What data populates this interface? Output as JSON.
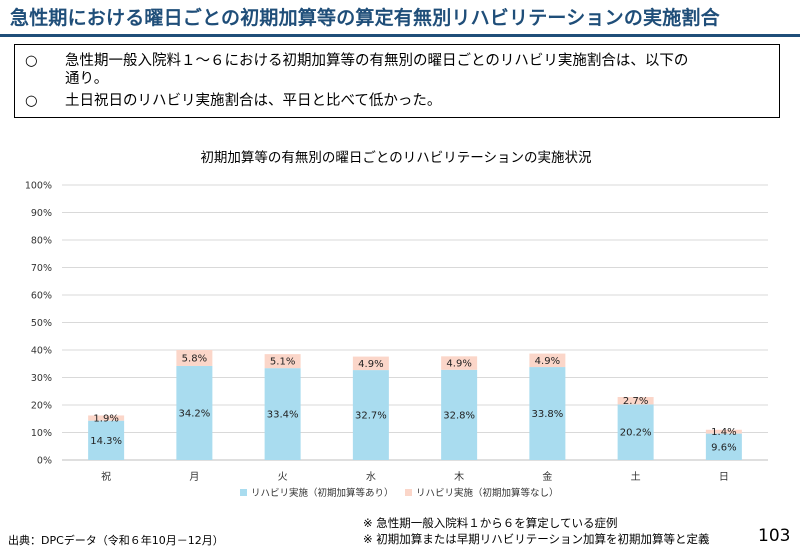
{
  "header": {
    "title": "急性期における曜日ごとの初期加算等の算定有無別リハビリテーションの実施割合"
  },
  "summary": {
    "bullet_symbol": "○",
    "items": [
      {
        "line1": "急性期一般入院料１～６における初期加算等の有無別の曜日ごとのリハビリ実施割合は、以下の",
        "line2": "通り。"
      },
      {
        "line1": "土日祝日のリハビリ実施割合は、平日と比べて低かった。",
        "line2": ""
      }
    ]
  },
  "chart_data": {
    "type": "bar",
    "stacked": true,
    "title": "初期加算等の有無別の曜日ごとのリハビリテーションの実施状況",
    "categories": [
      "祝",
      "月",
      "火",
      "水",
      "木",
      "金",
      "土",
      "日"
    ],
    "series": [
      {
        "name": "リハビリ実施（初期加算等あり）",
        "values": [
          14.3,
          34.2,
          33.4,
          32.7,
          32.8,
          33.8,
          20.2,
          9.6
        ],
        "labels": [
          "14.3%",
          "34.2%",
          "33.4%",
          "32.7%",
          "32.8%",
          "33.8%",
          "20.2%",
          "9.6%"
        ],
        "color": "#a9dcef"
      },
      {
        "name": "リハビリ実施（初期加算等なし）",
        "values": [
          1.9,
          5.8,
          5.1,
          4.9,
          4.9,
          4.9,
          2.7,
          1.4
        ],
        "labels": [
          "1.9%",
          "5.8%",
          "5.1%",
          "4.9%",
          "4.9%",
          "4.9%",
          "2.7%",
          "1.4%"
        ],
        "color": "#fbd6c9"
      }
    ],
    "ylim": [
      0,
      100
    ],
    "yticks": [
      "0%",
      "10%",
      "20%",
      "30%",
      "40%",
      "50%",
      "60%",
      "70%",
      "80%",
      "90%",
      "100%"
    ],
    "grid": true,
    "legend_position": "bottom"
  },
  "notes": [
    "※ 急性期一般入院料１から６を算定している症例",
    "※ 初期加算または早期リハビリテーション加算を初期加算等と定義"
  ],
  "source": "出典：DPCデータ（令和６年10月－12月）",
  "page_number": "103"
}
